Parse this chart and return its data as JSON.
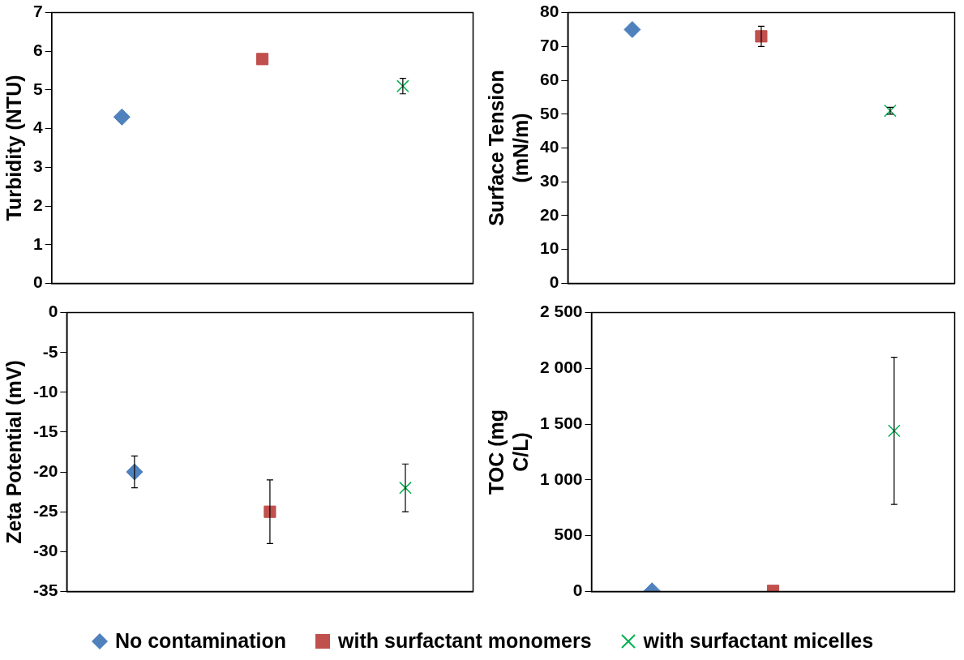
{
  "chart_data": [
    {
      "type": "scatter",
      "ylabel": "Turbidity (NTU)",
      "categories": [
        null,
        null,
        null
      ],
      "ylim": [
        0,
        7
      ],
      "yticks": [
        0,
        1,
        2,
        3,
        4,
        5,
        6,
        7
      ],
      "grid": false,
      "tick_labels": "y",
      "legend": "bottom",
      "series": [
        {
          "name": "No contamination",
          "color": "#4f81bd",
          "marker": "diamond",
          "values": [
            4.3,
            null,
            null
          ]
        },
        {
          "name": "with surfactant monomers",
          "color": "#c0504d",
          "marker": "square",
          "values": [
            null,
            5.8,
            null
          ]
        },
        {
          "name": "with surfactant micelles",
          "color": "#00b050",
          "marker": "cross",
          "values": [
            null,
            null,
            5.1
          ],
          "errors": [
            null,
            null,
            0.2
          ]
        }
      ]
    },
    {
      "type": "scatter",
      "ylabel": "Surface Tension (mN/m)",
      "categories": [
        null,
        null,
        null
      ],
      "ylim": [
        0,
        80
      ],
      "yticks": [
        0,
        10,
        20,
        30,
        40,
        50,
        60,
        70,
        80
      ],
      "grid": false,
      "tick_labels": "y",
      "series": [
        {
          "color": "#4f81bd",
          "marker": "diamond",
          "values": [
            75,
            null,
            null
          ]
        },
        {
          "color": "#c0504d",
          "marker": "square",
          "values": [
            null,
            73,
            null
          ],
          "errors": [
            null,
            3,
            null
          ]
        },
        {
          "color": "#00b050",
          "marker": "cross",
          "values": [
            null,
            null,
            51
          ],
          "errors": [
            null,
            null,
            1
          ]
        }
      ]
    },
    {
      "type": "scatter",
      "ylabel": "Zeta Potential (mV)",
      "categories": [
        null,
        null,
        null
      ],
      "ylim": [
        -35,
        0
      ],
      "yticks": [
        -35,
        -30,
        -25,
        -20,
        -15,
        -10,
        -5,
        0
      ],
      "grid": false,
      "tick_labels": "y",
      "series": [
        {
          "color": "#4f81bd",
          "marker": "diamond",
          "values": [
            -20,
            null,
            null
          ],
          "errors": [
            2,
            null,
            null
          ]
        },
        {
          "color": "#c0504d",
          "marker": "square",
          "values": [
            null,
            -25,
            null
          ],
          "errors": [
            null,
            4,
            null
          ]
        },
        {
          "color": "#00b050",
          "marker": "cross",
          "values": [
            null,
            null,
            -22
          ],
          "errors": [
            null,
            null,
            3
          ]
        }
      ]
    },
    {
      "type": "scatter",
      "ylabel": "TOC (mg C/L)",
      "categories": [
        null,
        null,
        null
      ],
      "ylim": [
        0,
        2500
      ],
      "yticks": [
        0,
        500,
        {
          "value": 1000,
          "label": "1 000"
        },
        {
          "value": 1500,
          "label": "1 500"
        },
        {
          "value": 2000,
          "label": "2 000"
        },
        {
          "value": 2500,
          "label": "2 500"
        }
      ],
      "grid": false,
      "tick_labels": "y",
      "series": [
        {
          "color": "#4f81bd",
          "marker": "diamond",
          "values": [
            5,
            null,
            null
          ]
        },
        {
          "color": "#c0504d",
          "marker": "square",
          "values": [
            null,
            5,
            null
          ]
        },
        {
          "color": "#00b050",
          "marker": "cross",
          "values": [
            null,
            null,
            1440
          ],
          "errors": [
            null,
            null,
            [
              780,
              2100
            ]
          ]
        }
      ]
    }
  ]
}
